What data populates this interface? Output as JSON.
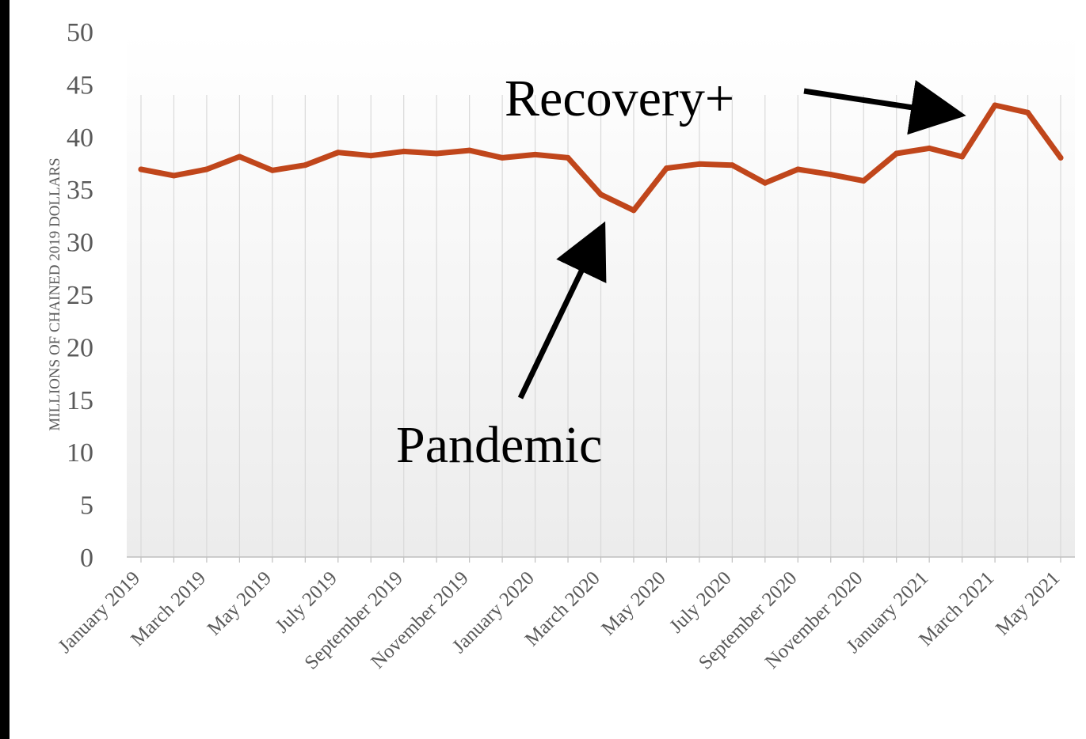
{
  "chart_data": {
    "type": "line",
    "title": "",
    "xlabel": "",
    "ylabel": "MILLIONS OF CHAINED 2019 DOLLARS",
    "ylim": [
      0,
      50
    ],
    "yticks": [
      0,
      5,
      10,
      15,
      20,
      25,
      30,
      35,
      40,
      45,
      50
    ],
    "x": [
      "January 2019",
      "February 2019",
      "March 2019",
      "April 2019",
      "May 2019",
      "June 2019",
      "July 2019",
      "August 2019",
      "September 2019",
      "October 2019",
      "November 2019",
      "December 2019",
      "January 2020",
      "February 2020",
      "March 2020",
      "April 2020",
      "May 2020",
      "June 2020",
      "July 2020",
      "August 2020",
      "September 2020",
      "October 2020",
      "November 2020",
      "December 2020",
      "January 2021",
      "February 2021",
      "March 2021",
      "April 2021",
      "May 2021"
    ],
    "x_tick_labels": [
      "January 2019",
      "March 2019",
      "May 2019",
      "July 2019",
      "September 2019",
      "November 2019",
      "January 2020",
      "March 2020",
      "May 2020",
      "July 2020",
      "September 2020",
      "November 2020",
      "January 2021",
      "March 2021",
      "May 2021"
    ],
    "series": [
      {
        "values": [
          36.9,
          36.3,
          36.9,
          38.1,
          36.8,
          37.3,
          38.5,
          38.2,
          38.6,
          38.4,
          38.7,
          38.0,
          38.3,
          38.0,
          34.5,
          33.0,
          37.0,
          37.4,
          37.3,
          35.6,
          36.9,
          36.4,
          35.8,
          38.4,
          38.9,
          38.1,
          43.0,
          42.3,
          38.0
        ],
        "color": "#C0461B"
      }
    ],
    "grid": "vertical",
    "legend": "none",
    "annotations": [
      {
        "text": "Pandemic",
        "target": "March 2020"
      },
      {
        "text": "Recovery+",
        "target": "March 2021"
      }
    ]
  }
}
